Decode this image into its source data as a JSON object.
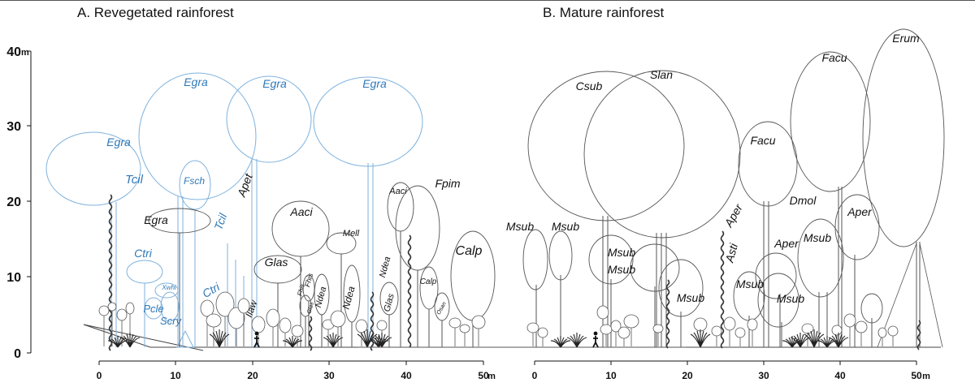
{
  "colors": {
    "revegetated_crown": "#7fb2dd",
    "revegetated_label": "#2f78b7",
    "mature_crown": "#555555",
    "ink": "#111111",
    "top_rule": "#555555"
  },
  "panel_a": {
    "title": "A. Revegetated rainforest",
    "x_ticks": [
      "0",
      "10",
      "20",
      "30",
      "40",
      "50"
    ],
    "x_unit": "m",
    "y_ticks": [
      "0",
      "10",
      "20",
      "30",
      "40"
    ],
    "y_unit": "m",
    "blue_labels": [
      "Egra",
      "Egra",
      "Egra",
      "Egra",
      "Tcil",
      "Fsch",
      "Tcil",
      "Ctri",
      "Ctri",
      "Xwhi",
      "Pcle",
      "Scry"
    ],
    "black_labels": [
      "Egra",
      "Apet",
      "Aaci",
      "Mell",
      "Glas",
      "Fhis",
      "Ndea",
      "Fhis",
      "Glas",
      "Ndea",
      "Ilaw",
      "Ndea",
      "Glas",
      "Aaci",
      "Fpim",
      "Calp",
      "Calp",
      "Osan"
    ]
  },
  "panel_b": {
    "title": "B. Mature rainforest",
    "x_ticks": [
      "0",
      "10",
      "20",
      "30",
      "40",
      "50"
    ],
    "x_unit": "m",
    "labels": [
      "Csub",
      "Slan",
      "Facu",
      "Erum",
      "Facu",
      "Dmol",
      "Aper",
      "Aper",
      "Msub",
      "Msub",
      "Msub",
      "Msub",
      "Msub",
      "Aper",
      "Asti",
      "Msub",
      "Msub",
      "Msub"
    ]
  }
}
